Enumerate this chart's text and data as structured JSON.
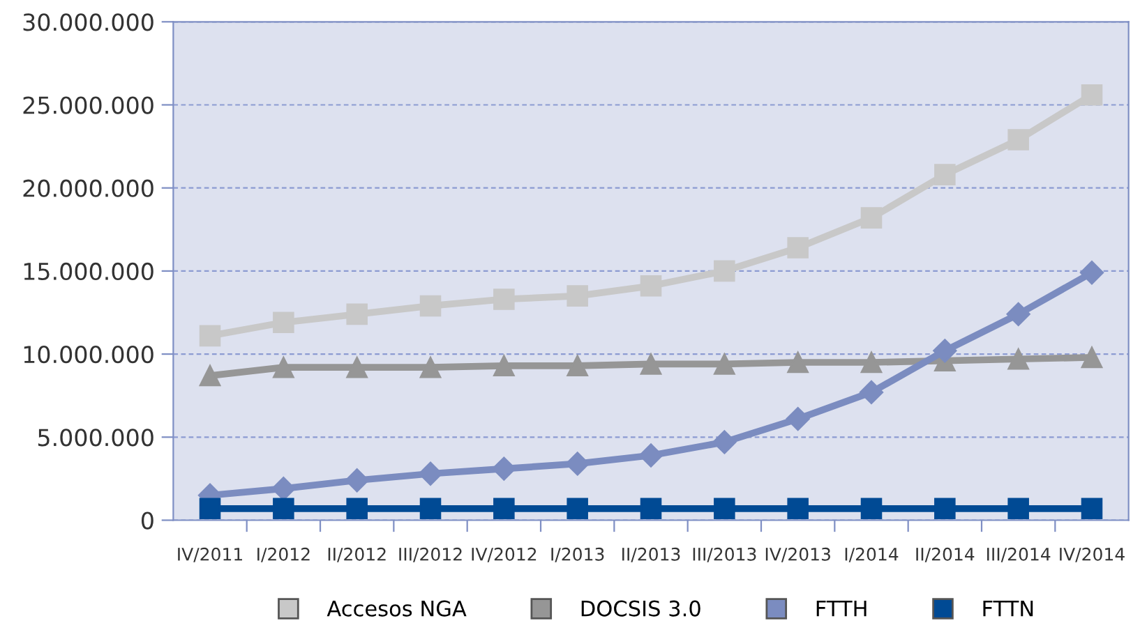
{
  "chart_data": {
    "type": "line",
    "categories": [
      "IV/2011",
      "I/2012",
      "II/2012",
      "III/2012",
      "IV/2012",
      "I/2013",
      "II/2013",
      "III/2013",
      "IV/2013",
      "I/2014",
      "II/2014",
      "III/2014",
      "IV/2014"
    ],
    "series": [
      {
        "name": "Accesos NGA",
        "color": "#c8c8c8",
        "marker": "square",
        "values": [
          11100000,
          11900000,
          12400000,
          12900000,
          13300000,
          13500000,
          14100000,
          15000000,
          16400000,
          18200000,
          20800000,
          22900000,
          25600000
        ]
      },
      {
        "name": "DOCSIS 3.0",
        "color": "#969696",
        "marker": "triangle",
        "values": [
          8700000,
          9200000,
          9200000,
          9200000,
          9300000,
          9300000,
          9400000,
          9400000,
          9500000,
          9500000,
          9600000,
          9700000,
          9800000
        ]
      },
      {
        "name": "FTTH",
        "color": "#7b8cc0",
        "marker": "diamond",
        "values": [
          1500000,
          1900000,
          2400000,
          2800000,
          3100000,
          3400000,
          3900000,
          4700000,
          6100000,
          7700000,
          10200000,
          12400000,
          14900000
        ]
      },
      {
        "name": "FTTN",
        "color": "#004a94",
        "marker": "square",
        "values": [
          700000,
          700000,
          700000,
          700000,
          700000,
          700000,
          700000,
          700000,
          700000,
          700000,
          700000,
          700000,
          700000
        ]
      }
    ],
    "ylim": [
      0,
      30000000
    ],
    "yticks": [
      {
        "value": 0,
        "label": "0"
      },
      {
        "value": 5000000,
        "label": "5.000.000"
      },
      {
        "value": 10000000,
        "label": "10.000.000"
      },
      {
        "value": 15000000,
        "label": "15.000.000"
      },
      {
        "value": 20000000,
        "label": "20.000.000"
      },
      {
        "value": 25000000,
        "label": "25.000.000"
      },
      {
        "value": 30000000,
        "label": "30.000.000"
      }
    ],
    "grid": "y",
    "legend": "bottom",
    "line_style": "solid"
  }
}
